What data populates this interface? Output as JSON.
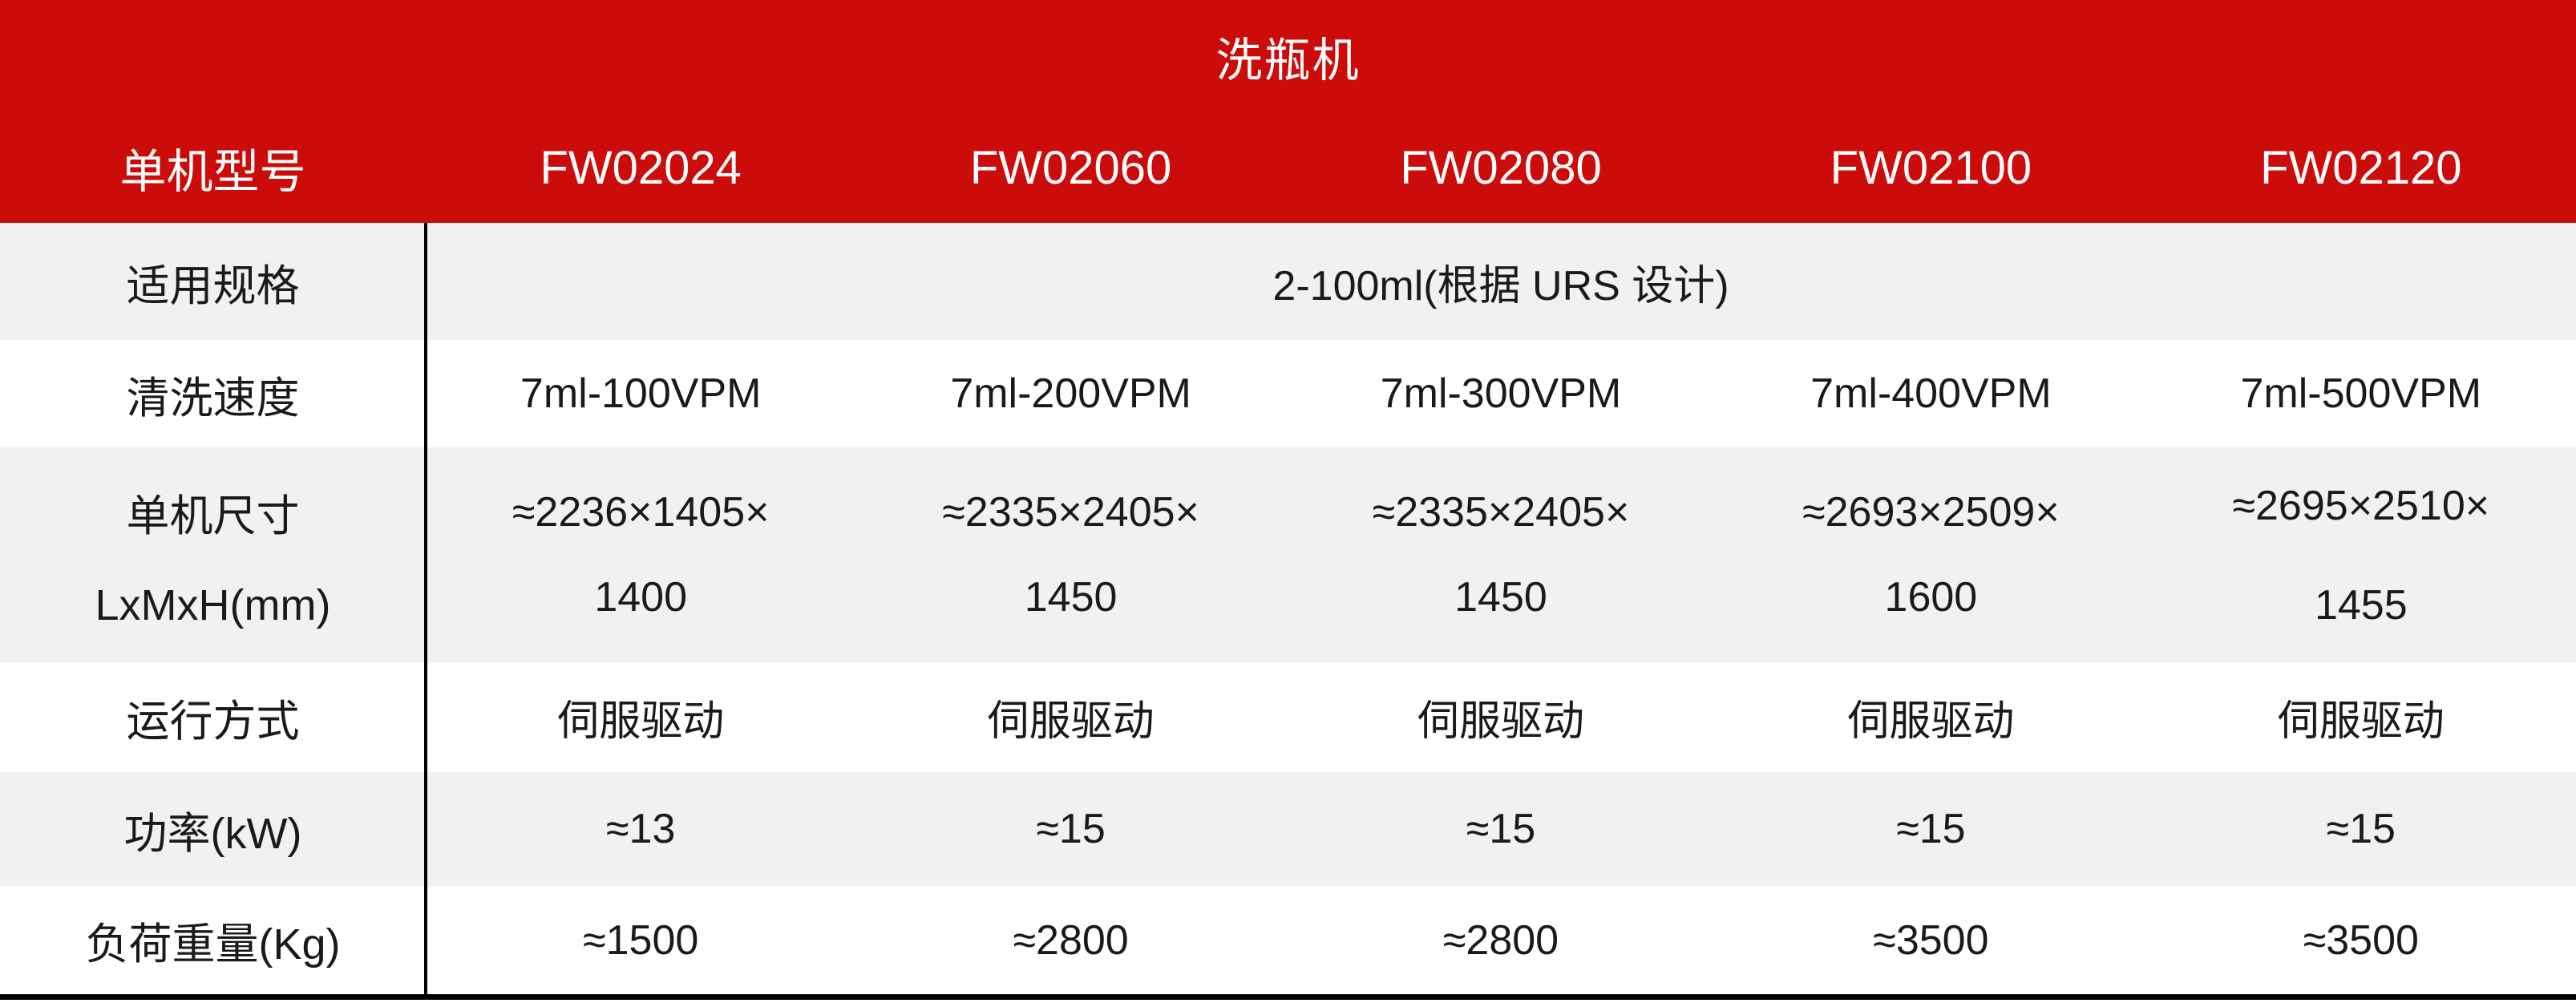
{
  "colors": {
    "header_red": "#cc0b0b",
    "row_alt_gray": "#f2f1f1",
    "row_white": "#ffffff",
    "text_ink": "#1a1a1a",
    "line_black": "#000000"
  },
  "table": {
    "title": "洗瓶机",
    "model_header": "单机型号",
    "models": [
      "FW02024",
      "FW02060",
      "FW02080",
      "FW02100",
      "FW02120"
    ],
    "rows": [
      {
        "label": "适用规格",
        "value": "2-100ml(根据 URS 设计)"
      },
      {
        "label": "清洗速度",
        "values": [
          "7ml-100VPM",
          "7ml-200VPM",
          "7ml-300VPM",
          "7ml-400VPM",
          "7ml-500VPM"
        ]
      },
      {
        "label_line1": "单机尺寸",
        "label_line2": "LxMxH(mm)",
        "values": [
          {
            "line1": "≈2236×1405×",
            "line2": "1400"
          },
          {
            "line1": "≈2335×2405×",
            "line2": "1450"
          },
          {
            "line1": "≈2335×2405×",
            "line2": "1450"
          },
          {
            "line1": "≈2693×2509×",
            "line2": "1600"
          },
          {
            "line1": "≈2695×2510×",
            "line2": "1455"
          }
        ]
      },
      {
        "label": "运行方式",
        "values": [
          "伺服驱动",
          "伺服驱动",
          "伺服驱动",
          "伺服驱动",
          "伺服驱动"
        ]
      },
      {
        "label": "功率(kW)",
        "values": [
          "≈13",
          "≈15",
          "≈15",
          "≈15",
          "≈15"
        ]
      },
      {
        "label": "负荷重量(Kg)",
        "values": [
          "≈1500",
          "≈2800",
          "≈2800",
          "≈3500",
          "≈3500"
        ]
      }
    ]
  },
  "chart_data": {
    "type": "table",
    "title": "洗瓶机",
    "columns": [
      "单机型号",
      "FW02024",
      "FW02060",
      "FW02080",
      "FW02100",
      "FW02120"
    ],
    "rows": [
      [
        "适用规格",
        "2-100ml(根据 URS 设计)",
        "2-100ml(根据 URS 设计)",
        "2-100ml(根据 URS 设计)",
        "2-100ml(根据 URS 设计)",
        "2-100ml(根据 URS 设计)"
      ],
      [
        "清洗速度",
        "7ml-100VPM",
        "7ml-200VPM",
        "7ml-300VPM",
        "7ml-400VPM",
        "7ml-500VPM"
      ],
      [
        "单机尺寸 LxMxH(mm)",
        "≈2236×1405×1400",
        "≈2335×2405×1450",
        "≈2335×2405×1450",
        "≈2693×2509×1600",
        "≈2695×2510×1455"
      ],
      [
        "运行方式",
        "伺服驱动",
        "伺服驱动",
        "伺服驱动",
        "伺服驱动",
        "伺服驱动"
      ],
      [
        "功率(kW)",
        "≈13",
        "≈15",
        "≈15",
        "≈15",
        "≈15"
      ],
      [
        "负荷重量(Kg)",
        "≈1500",
        "≈2800",
        "≈2800",
        "≈3500",
        "≈3500"
      ]
    ]
  }
}
